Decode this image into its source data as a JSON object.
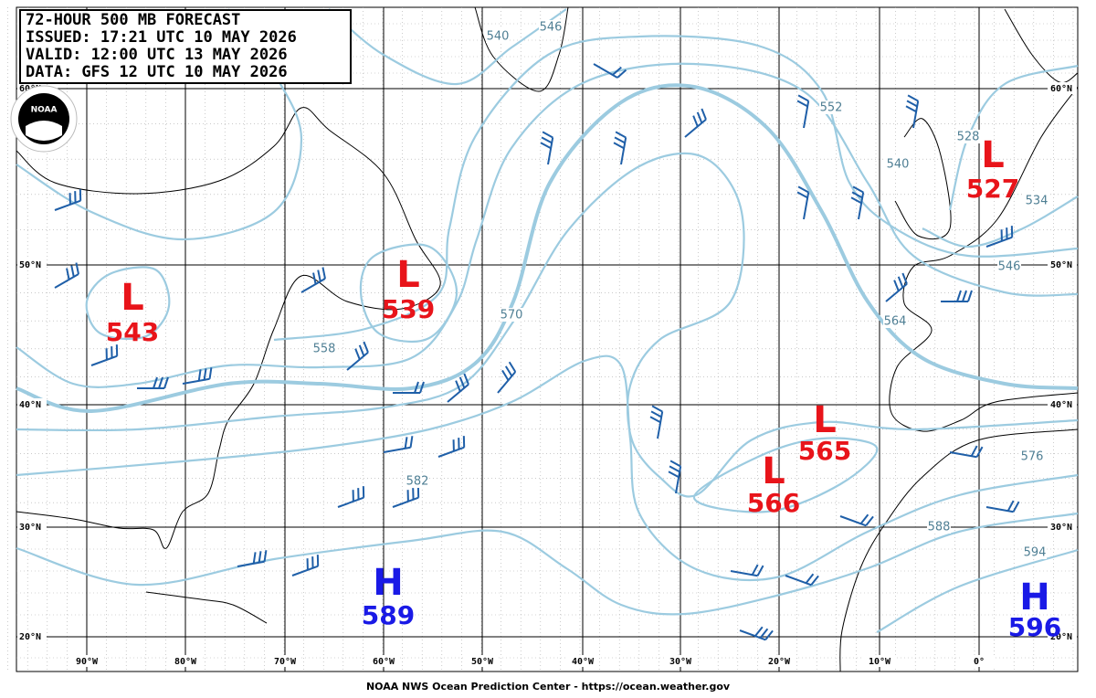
{
  "header": {
    "lines": [
      "72-HOUR 500 MB FORECAST",
      "ISSUED: 17:21 UTC 10 MAY 2026",
      "VALID:  12:00 UTC 13 MAY 2026",
      "DATA:  GFS 12 UTC 10 MAY 2026"
    ],
    "logo": "NOAA"
  },
  "latitudes": [
    "60°N",
    "50°N",
    "40°N",
    "30°N",
    "20°N"
  ],
  "longitudes": [
    "90°W",
    "80°W",
    "70°W",
    "60°W",
    "50°W",
    "40°W",
    "30°W",
    "20°W",
    "10°W",
    "0°"
  ],
  "centers": [
    {
      "letter": "L",
      "value": "543"
    },
    {
      "letter": "L",
      "value": "539"
    },
    {
      "letter": "L",
      "value": "527"
    },
    {
      "letter": "L",
      "value": "565"
    },
    {
      "letter": "L",
      "value": "566"
    },
    {
      "letter": "H",
      "value": "589"
    },
    {
      "letter": "H",
      "value": "596"
    }
  ],
  "contour_labels": [
    "540",
    "546",
    "552",
    "528",
    "540",
    "534",
    "546",
    "564",
    "570",
    "582",
    "576",
    "588",
    "594",
    "558"
  ],
  "footer": "NOAA NWS Ocean Prediction Center - https://ocean.weather.gov"
}
